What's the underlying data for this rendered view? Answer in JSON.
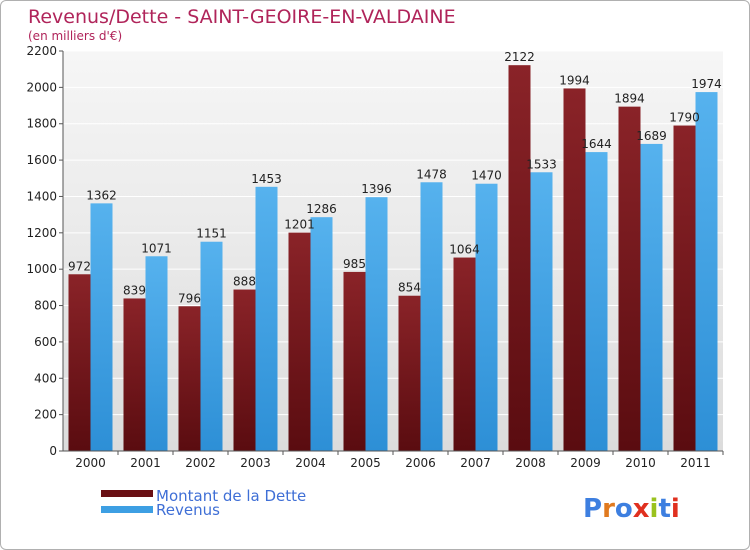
{
  "chart_data": {
    "type": "bar",
    "title": "Revenus/Dette - SAINT-GEOIRE-EN-VALDAINE",
    "subtitle": "(en milliers d'€)",
    "categories": [
      "2000",
      "2001",
      "2002",
      "2003",
      "2004",
      "2005",
      "2006",
      "2007",
      "2008",
      "2009",
      "2010",
      "2011"
    ],
    "series": [
      {
        "name": "Montant de la Dette",
        "color": "#7a1418",
        "values": [
          972,
          839,
          796,
          888,
          1201,
          985,
          854,
          1064,
          2122,
          1994,
          1894,
          1790
        ],
        "labels": [
          "972",
          "839",
          "796",
          "888",
          "1201",
          "985",
          "854",
          "1064",
          "2122",
          "1994",
          "1894",
          "1790"
        ]
      },
      {
        "name": "Revenus",
        "color": "#3d9fe3",
        "values": [
          1362,
          1071,
          1151,
          1453,
          1286,
          1396,
          1478,
          1470,
          1533,
          1644,
          1689,
          1974
        ],
        "labels": [
          "1362",
          "1071",
          "1151",
          "1453",
          "1286",
          "1396",
          "1478",
          "1470",
          "1533",
          "1644",
          "1689",
          "1974"
        ]
      }
    ],
    "ylim": [
      0,
      2200
    ],
    "yticks": [
      0,
      200,
      400,
      600,
      800,
      1000,
      1200,
      1400,
      1600,
      1800,
      2000,
      2200
    ],
    "xlabel": "",
    "ylabel": "",
    "grid": true,
    "legend_position": "bottom-left"
  },
  "watermark": {
    "text": "Proxiti",
    "colors": [
      "#3d7fe0",
      "#e07a1f",
      "#3d7fe0",
      "#e0301f",
      "#9ac21f",
      "#3d7fe0",
      "#e0301f"
    ]
  }
}
